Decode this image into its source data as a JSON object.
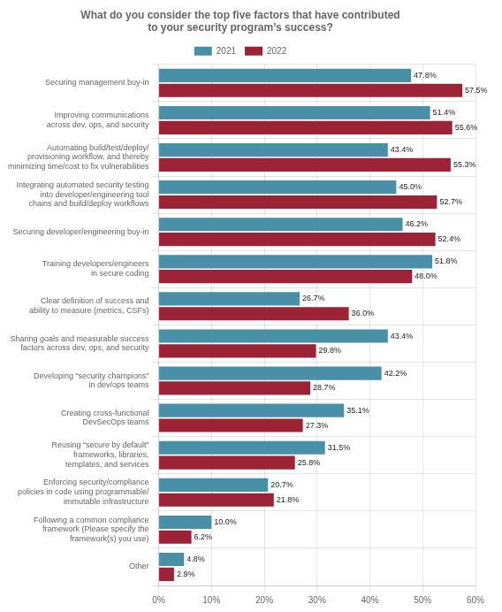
{
  "chart_data": {
    "type": "bar",
    "orientation": "horizontal",
    "title": "What do you consider the top five factors that have contributed\nto your security program’s success?",
    "categories": [
      "Securing management buy-in",
      "Improving communications\nacross dev, ops, and security",
      "Automating build/test/deploy/\nprovisioning workflow, and thereby\nminimizing time/cost to fix vulnerabilities",
      "Integrating automated security testing\ninto developer/engineering tool\nchains and build/deploy workflows",
      "Securing developer/engineering buy-in",
      "Training developers/engineers\nin secure coding",
      "Clear definition of success and\nability to measure (metrics, CSFs)",
      "Sharing goals and measurable success\nfactors across dev, ops, and security",
      "Developing “security champions”\nin dev/ops teams",
      "Creating cross-functional\nDevSecOps teams",
      "Reusing “secure by default”\nframeworks, libraries,\ntemplates, and services",
      "Enforcing security/compliance\npolicies in code using programmable/\nimmutable infrastructure",
      "Following a common compliance\nframework (Please specify the\nframework(s) you use)",
      "Other"
    ],
    "series": [
      {
        "name": "2021",
        "color": "#4a8fa8",
        "values": [
          47.8,
          51.4,
          43.4,
          45.0,
          46.2,
          51.8,
          26.7,
          43.4,
          42.2,
          35.1,
          31.5,
          20.7,
          10.0,
          4.8
        ],
        "value_labels": [
          "47.8%",
          "51.4%",
          "43.4%",
          "45.0%",
          "46.2%",
          "51.8%",
          "26.7%",
          "43.4%",
          "42.2%",
          "35.1%",
          "31.5%",
          "20.7%",
          "10.0%",
          "4.8%"
        ]
      },
      {
        "name": "2022",
        "color": "#9b2335",
        "values": [
          57.5,
          55.6,
          55.3,
          52.7,
          52.4,
          48.0,
          36.0,
          29.8,
          28.7,
          27.3,
          25.8,
          21.8,
          6.2,
          2.9
        ],
        "value_labels": [
          "57.5%",
          "55.6%",
          "55.3%",
          "52.7%",
          "52.4%",
          "48.0%",
          "36.0%",
          "29.8%",
          "28.7%",
          "27.3%",
          "25.8%",
          "21.8%",
          "6.2%",
          "2.9%"
        ]
      }
    ],
    "xlim": [
      0,
      60
    ],
    "xticks": [
      {
        "value": 0,
        "label": "0%"
      },
      {
        "value": 10,
        "label": "10%"
      },
      {
        "value": 20,
        "label": "20%"
      },
      {
        "value": 30,
        "label": "30%"
      },
      {
        "value": 40,
        "label": "40%"
      },
      {
        "value": 50,
        "label": "50%"
      },
      {
        "value": 60,
        "label": "60%"
      }
    ],
    "grid": true,
    "legend": "top",
    "data_labels": true
  }
}
